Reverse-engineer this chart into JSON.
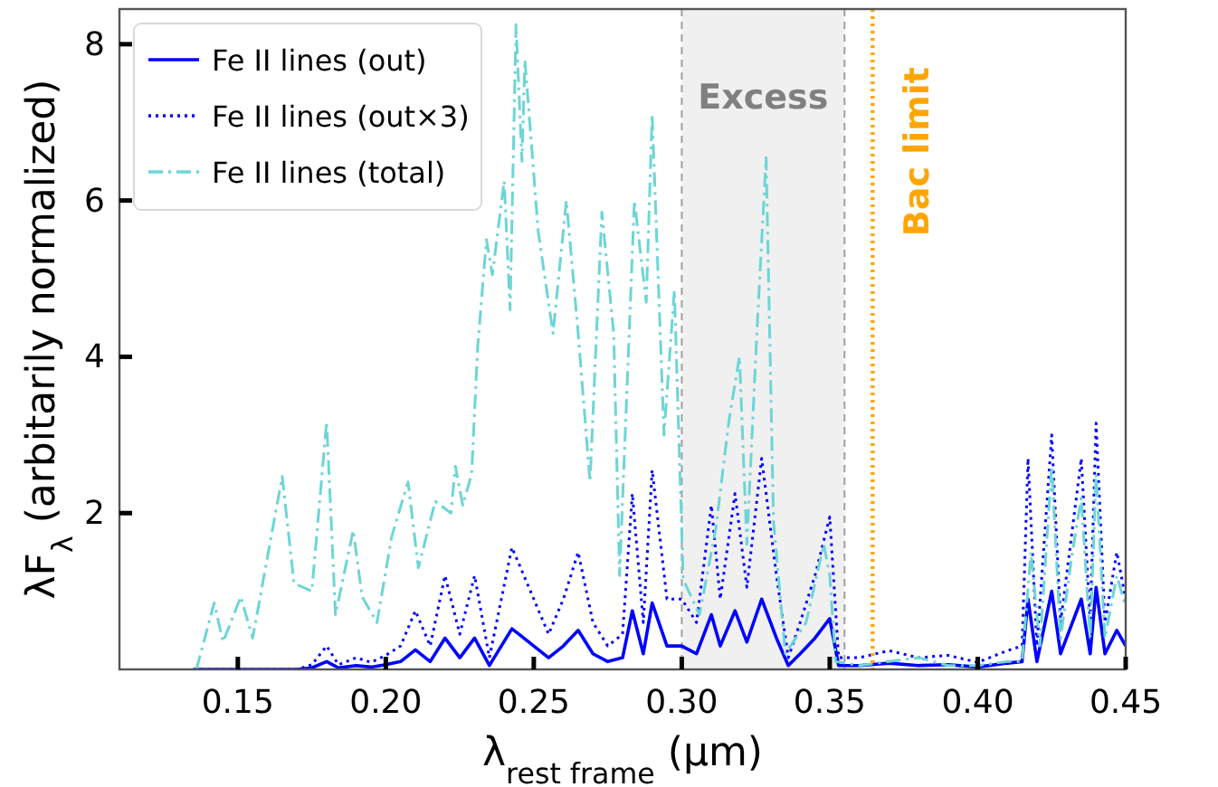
{
  "chart_data": {
    "type": "line",
    "xlabel": "λ$_{rest frame}$ (μm)",
    "ylabel": "λF$_{λ}$ (arbitarily normalized)",
    "xlim": [
      0.11,
      0.45
    ],
    "ylim": [
      0,
      8.45
    ],
    "xticks": [
      0.15,
      {
        "value": 0.2,
        "label": "0.20"
      },
      0.25,
      {
        "value": 0.3,
        "label": "0.30"
      },
      0.35,
      {
        "value": 0.4,
        "label": "0.40"
      },
      0.45
    ],
    "yticks": [
      2,
      4,
      6,
      8
    ],
    "legend": "top left",
    "bands": [
      {
        "axis": "x",
        "from": 0.3,
        "to": 0.355,
        "label": "Excess",
        "color": "#f0f0f0"
      }
    ],
    "ref_lines": [
      {
        "axis": "x",
        "value": 0.3645,
        "label": "Bac limit",
        "color": "#ffa500",
        "line_style": "dotted"
      }
    ],
    "series": [
      {
        "name": "Fe II lines (out)",
        "color": "#0000ff",
        "line_style": "solid",
        "x": [
          0.135,
          0.15,
          0.17,
          0.175,
          0.18,
          0.184,
          0.19,
          0.195,
          0.2,
          0.205,
          0.21,
          0.215,
          0.22,
          0.225,
          0.23,
          0.235,
          0.2426,
          0.245,
          0.25,
          0.255,
          0.26,
          0.265,
          0.27,
          0.275,
          0.28,
          0.2833,
          0.287,
          0.29,
          0.295,
          0.3,
          0.305,
          0.31,
          0.313,
          0.318,
          0.322,
          0.327,
          0.332,
          0.336,
          0.34,
          0.345,
          0.35,
          0.353,
          0.36,
          0.37,
          0.38,
          0.39,
          0.4,
          0.41,
          0.415,
          0.417,
          0.42,
          0.425,
          0.428,
          0.432,
          0.435,
          0.438,
          0.44,
          0.443,
          0.447,
          0.45
        ],
        "values": [
          0,
          0,
          0,
          0.02,
          0.1,
          0.02,
          0.05,
          0.03,
          0.06,
          0.1,
          0.25,
          0.1,
          0.4,
          0.15,
          0.4,
          0.05,
          0.52,
          0.45,
          0.3,
          0.15,
          0.3,
          0.5,
          0.2,
          0.1,
          0.15,
          0.75,
          0.2,
          0.85,
          0.3,
          0.3,
          0.2,
          0.7,
          0.3,
          0.75,
          0.35,
          0.9,
          0.4,
          0.05,
          0.2,
          0.4,
          0.65,
          0.05,
          0.05,
          0.08,
          0.05,
          0.06,
          0.03,
          0.08,
          0.1,
          0.9,
          0.1,
          1.0,
          0.2,
          0.6,
          0.9,
          0.2,
          1.05,
          0.2,
          0.5,
          0.3
        ]
      },
      {
        "name": "Fe II lines (out×3)",
        "color": "#0000ff",
        "line_style": "dotted",
        "x": [
          0.135,
          0.15,
          0.17,
          0.175,
          0.18,
          0.184,
          0.19,
          0.195,
          0.2,
          0.205,
          0.21,
          0.215,
          0.22,
          0.225,
          0.23,
          0.235,
          0.2426,
          0.245,
          0.25,
          0.255,
          0.26,
          0.265,
          0.27,
          0.275,
          0.28,
          0.2833,
          0.287,
          0.29,
          0.295,
          0.3,
          0.305,
          0.31,
          0.313,
          0.318,
          0.322,
          0.327,
          0.332,
          0.336,
          0.34,
          0.345,
          0.35,
          0.353,
          0.36,
          0.37,
          0.38,
          0.39,
          0.4,
          0.41,
          0.415,
          0.417,
          0.42,
          0.425,
          0.428,
          0.432,
          0.435,
          0.438,
          0.44,
          0.443,
          0.447,
          0.45
        ],
        "values": [
          0,
          null,
          0,
          0.06,
          0.3,
          0.06,
          0.15,
          0.09,
          0.18,
          0.3,
          0.75,
          0.3,
          1.2,
          0.45,
          1.2,
          0.15,
          1.56,
          1.35,
          0.9,
          0.45,
          0.9,
          1.5,
          0.6,
          0.3,
          0.45,
          2.25,
          0.6,
          2.55,
          0.9,
          0.9,
          0.6,
          2.1,
          0.9,
          2.25,
          1.05,
          2.7,
          1.2,
          0.15,
          0.6,
          1.2,
          1.95,
          0.15,
          0.15,
          0.24,
          0.15,
          0.18,
          0.09,
          0.24,
          0.3,
          2.7,
          0.3,
          3.0,
          0.6,
          1.8,
          2.7,
          0.6,
          3.15,
          0.6,
          1.5,
          0.9
        ]
      },
      {
        "name": "Fe II lines (total)",
        "color": "#6dd5d5",
        "line_style": "dashdot",
        "x": [
          0.136,
          0.142,
          0.145,
          0.151,
          0.155,
          0.165,
          0.169,
          0.175,
          0.18,
          0.183,
          0.189,
          0.192,
          0.197,
          0.202,
          0.2075,
          0.211,
          0.2167,
          0.222,
          0.2235,
          0.226,
          0.229,
          0.231,
          0.234,
          0.236,
          0.24,
          0.242,
          0.244,
          0.246,
          0.247,
          0.2515,
          0.2565,
          0.261,
          0.265,
          0.269,
          0.273,
          0.277,
          0.279,
          0.284,
          0.288,
          0.29,
          0.294,
          0.2975,
          0.3005,
          0.306,
          0.3115,
          0.316,
          0.3195,
          0.322,
          0.3255,
          0.3285,
          0.331,
          0.335,
          0.342,
          0.348,
          0.35,
          0.352,
          0.36,
          0.37,
          0.38,
          0.39,
          0.4,
          0.41,
          0.415,
          0.418,
          0.421,
          0.425,
          0.428,
          0.432,
          0.435,
          0.438,
          0.44,
          0.443,
          0.447,
          0.45
        ],
        "values": [
          0,
          0.85,
          0.35,
          0.93,
          0.4,
          2.47,
          1.1,
          1.0,
          3.17,
          0.7,
          1.78,
          0.93,
          0.6,
          1.7,
          2.4,
          1.3,
          2.15,
          2.0,
          2.6,
          2.1,
          2.5,
          4.1,
          5.5,
          5.05,
          6.25,
          4.6,
          8.25,
          6.5,
          7.8,
          5.6,
          4.3,
          6.0,
          4.3,
          2.4,
          5.85,
          4.3,
          1.2,
          6.0,
          4.7,
          7.1,
          3.0,
          4.85,
          1.15,
          0.7,
          1.8,
          3.2,
          4.0,
          1.6,
          4.4,
          6.55,
          1.9,
          0.2,
          0.6,
          1.6,
          1.2,
          0.1,
          0.05,
          0.1,
          0.15,
          0.05,
          0.05,
          0.1,
          0.1,
          1.5,
          0.3,
          2.6,
          0.4,
          1.5,
          2.2,
          0.4,
          2.5,
          0.4,
          1.2,
          0.8
        ]
      }
    ]
  }
}
